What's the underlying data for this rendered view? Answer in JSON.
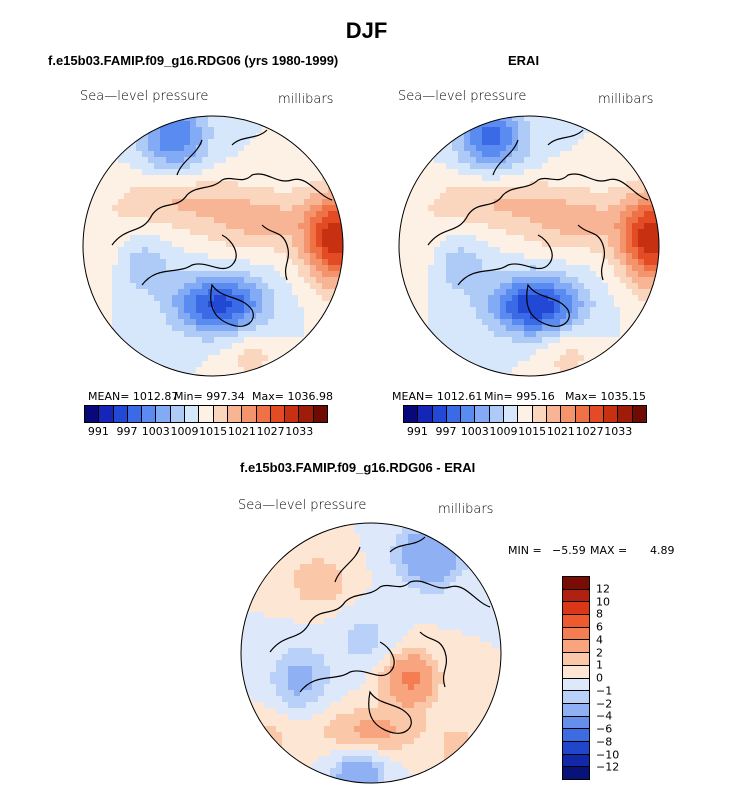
{
  "main_title": "DJF",
  "panels": [
    {
      "title": "f.e15b03.FAMIP.f09_g16.RDG06 (yrs 1980-1999)",
      "field_label": "Sea—level pressure",
      "units": "millibars",
      "stats": {
        "mean": "MEAN= 1012.87",
        "min": "Min= 997.34",
        "max": "Max= 1036.98"
      }
    },
    {
      "title": "ERAI",
      "field_label": "Sea—level pressure",
      "units": "millibars",
      "stats": {
        "mean": "MEAN= 1012.61",
        "min": "Min= 995.16",
        "max": "Max= 1035.15"
      }
    }
  ],
  "diff_panel": {
    "title": "f.e15b03.FAMIP.f09_g16.RDG06 - ERAI",
    "field_label": "Sea—level pressure",
    "units": "millibars",
    "min_label": "MIN =",
    "min_value": "−5.59",
    "max_label": "MAX =",
    "max_value": "4.89"
  },
  "chart_data": [
    {
      "type": "heatmap",
      "title": "f.e15b03.FAMIP.f09_g16.RDG06 (yrs 1980-1999)",
      "variable": "Sea-level pressure",
      "units": "millibars",
      "projection": "north polar stereographic",
      "mean": 1012.87,
      "min": 997.34,
      "max": 1036.98,
      "colorbar_ticks": [
        "991",
        "997",
        "1003",
        "1009",
        "1015",
        "1021",
        "1027",
        "1033"
      ],
      "colorbar_levels": [
        988,
        991,
        994,
        997,
        1000,
        1003,
        1006,
        1009,
        1012,
        1015,
        1018,
        1021,
        1024,
        1027,
        1030,
        1033,
        1036
      ]
    },
    {
      "type": "heatmap",
      "title": "ERAI",
      "variable": "Sea-level pressure",
      "units": "millibars",
      "projection": "north polar stereographic",
      "mean": 1012.61,
      "min": 995.16,
      "max": 1035.15,
      "colorbar_ticks": [
        "991",
        "997",
        "1003",
        "1009",
        "1015",
        "1021",
        "1027",
        "1033"
      ],
      "colorbar_levels": [
        988,
        991,
        994,
        997,
        1000,
        1003,
        1006,
        1009,
        1012,
        1015,
        1018,
        1021,
        1024,
        1027,
        1030,
        1033,
        1036
      ]
    },
    {
      "type": "heatmap",
      "title": "f.e15b03.FAMIP.f09_g16.RDG06 - ERAI",
      "variable": "Sea-level pressure difference",
      "units": "millibars",
      "projection": "north polar stereographic",
      "min": -5.59,
      "max": 4.89,
      "colorbar_ticks": [
        "12",
        "10",
        "8",
        "6",
        "4",
        "2",
        "1",
        "0",
        "−1",
        "−2",
        "−4",
        "−6",
        "−8",
        "−10",
        "−12"
      ]
    }
  ],
  "colors": {
    "abs_scale": [
      "#08087a",
      "#1525b8",
      "#2149d6",
      "#3a6ae6",
      "#5a8bf0",
      "#83aaf5",
      "#aecbf8",
      "#d6e6fb",
      "#fdf0e4",
      "#fbd6bf",
      "#f8b595",
      "#f4946c",
      "#ef7146",
      "#e34b25",
      "#c73011",
      "#a01c0a",
      "#6e0c04"
    ],
    "diff_scale": [
      "#7a0c06",
      "#b22011",
      "#db3618",
      "#ee5a2d",
      "#f47e52",
      "#f8a47f",
      "#fbc7a9",
      "#fde6d4",
      "#dde9fb",
      "#b9d0f8",
      "#8fb1f3",
      "#6490ec",
      "#3d6be2",
      "#2047cb",
      "#1129a8",
      "#07127a"
    ]
  }
}
